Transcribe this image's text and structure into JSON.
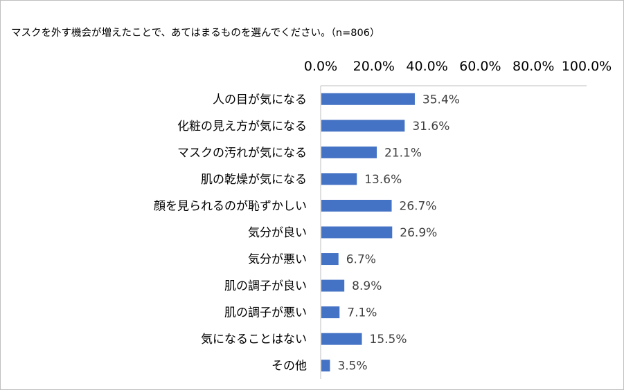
{
  "chart_data": {
    "type": "bar",
    "orientation": "horizontal",
    "title": "マスクを外す機会が増えたことで、あてはまるものを選んでください。（n=806）",
    "categories": [
      "人の目が気になる",
      "化粧の見え方が気になる",
      "マスクの汚れが気になる",
      "肌の乾燥が気になる",
      "顔を見られるのが恥ずかしい",
      "気分が良い",
      "気分が悪い",
      "肌の調子が良い",
      "肌の調子が悪い",
      "気になることはない",
      "その他"
    ],
    "values": [
      35.4,
      31.6,
      21.1,
      13.6,
      26.7,
      26.9,
      6.7,
      8.9,
      7.1,
      15.5,
      3.5
    ],
    "data_labels": [
      "35.4%",
      "31.6%",
      "21.1%",
      "13.6%",
      "26.7%",
      "26.9%",
      "6.7%",
      "8.9%",
      "7.1%",
      "15.5%",
      "3.5%"
    ],
    "xlim": [
      0,
      100
    ],
    "tick_labels": [
      "0.0%",
      "20.0%",
      "40.0%",
      "60.0%",
      "80.0%",
      "100.0%"
    ],
    "axis_position": "top",
    "grid": false,
    "bar_color": "#4472c4"
  }
}
